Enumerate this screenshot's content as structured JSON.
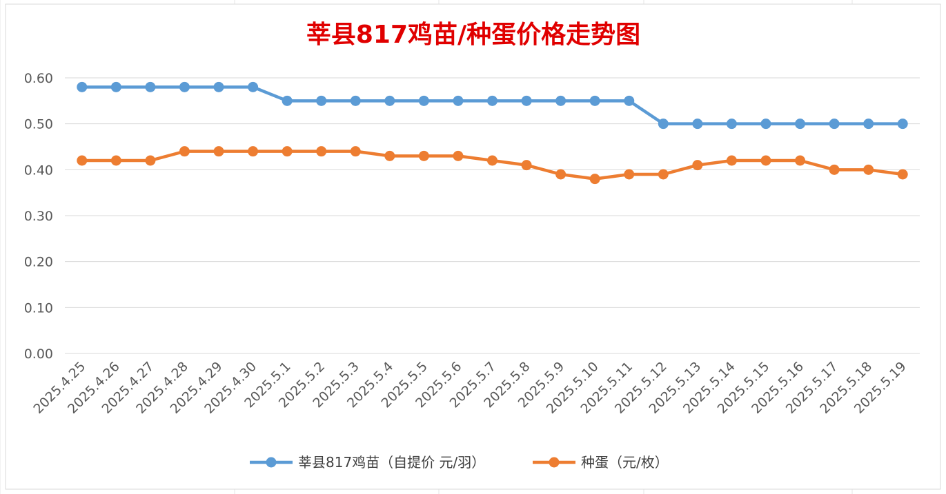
{
  "chart_data": {
    "type": "line",
    "title": "莘县817鸡苗/种蛋价格走势图",
    "categories": [
      "2025.4.25",
      "2025.4.26",
      "2025.4.27",
      "2025.4.28",
      "2025.4.29",
      "2025.4.30",
      "2025.5.1",
      "2025.5.2",
      "2025.5.3",
      "2025.5.4",
      "2025.5.5",
      "2025.5.6",
      "2025.5.7",
      "2025.5.8",
      "2025.5.9",
      "2025.5.10",
      "2025.5.11",
      "2025.5.12",
      "2025.5.13",
      "2025.5.14",
      "2025.5.15",
      "2025.5.16",
      "2025.5.17",
      "2025.5.18",
      "2025.5.19"
    ],
    "series": [
      {
        "name": "莘县817鸡苗（自提价 元/羽）",
        "color": "#5b9bd5",
        "values": [
          0.58,
          0.58,
          0.58,
          0.58,
          0.58,
          0.58,
          0.55,
          0.55,
          0.55,
          0.55,
          0.55,
          0.55,
          0.55,
          0.55,
          0.55,
          0.55,
          0.55,
          0.5,
          0.5,
          0.5,
          0.5,
          0.5,
          0.5,
          0.5,
          0.5
        ]
      },
      {
        "name": "种蛋（元/枚）",
        "color": "#ed7d31",
        "values": [
          0.42,
          0.42,
          0.42,
          0.44,
          0.44,
          0.44,
          0.44,
          0.44,
          0.44,
          0.43,
          0.43,
          0.43,
          0.42,
          0.41,
          0.39,
          0.38,
          0.39,
          0.39,
          0.41,
          0.42,
          0.42,
          0.42,
          0.4,
          0.4,
          0.39
        ]
      }
    ],
    "yticks": [
      "0.00",
      "0.10",
      "0.20",
      "0.30",
      "0.40",
      "0.50",
      "0.60"
    ],
    "ylim": [
      0,
      0.6
    ],
    "grid": true,
    "legend": "bottom"
  }
}
